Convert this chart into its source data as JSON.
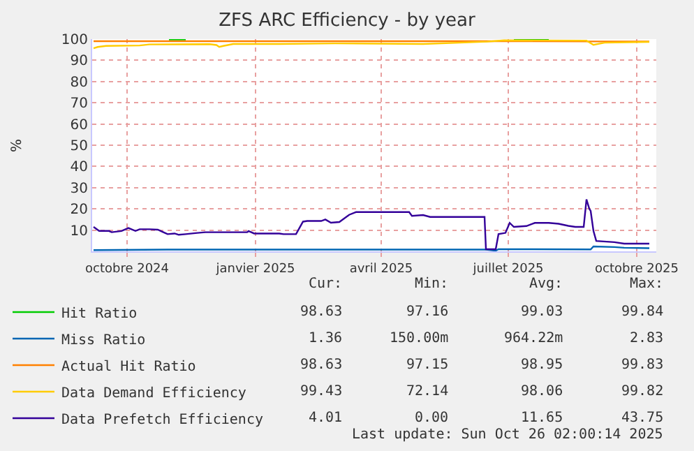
{
  "chart_data": {
    "type": "line",
    "title": "ZFS ARC Efficiency - by year",
    "ylabel": "%",
    "xlim": [
      "2024-09-06",
      "2025-10-15"
    ],
    "xticks": [
      {
        "value": "2024-10-01",
        "label": "octobre 2024"
      },
      {
        "value": "2025-01-01",
        "label": "janvier 2025"
      },
      {
        "value": "2025-04-01",
        "label": "avril 2025"
      },
      {
        "value": "2025-07-01",
        "label": "juillet 2025"
      },
      {
        "value": "2025-10-01",
        "label": "octobre 2025"
      }
    ],
    "ylim": [
      0,
      100
    ],
    "yticks": [
      10,
      20,
      30,
      40,
      50,
      60,
      70,
      80,
      90,
      100
    ],
    "grid": true,
    "legend": "bottom left",
    "series": [
      {
        "name": "Hit Ratio",
        "color": "#00cc00",
        "x": [
          "2024-10-31",
          "2024-11-12",
          "2024-11-13",
          "2025-07-05",
          "2025-07-30"
        ],
        "values": [
          99.8,
          99.8,
          null,
          99.9,
          99.9
        ]
      },
      {
        "name": "Miss Ratio",
        "color": "#0066b3",
        "x": [
          "2024-09-07",
          "2024-10-30",
          "2025-06-15",
          "2025-06-22",
          "2025-06-24",
          "2025-08-29",
          "2025-08-31",
          "2025-09-15",
          "2025-09-22",
          "2025-10-10"
        ],
        "values": [
          0.6,
          0.8,
          0.8,
          0.3,
          1.0,
          0.9,
          2.3,
          2.0,
          1.7,
          1.5
        ]
      },
      {
        "name": "Actual Hit Ratio",
        "color": "#ff8000",
        "x": [
          "2024-09-07",
          "2024-12-31",
          "2025-06-15",
          "2025-08-31",
          "2025-10-10"
        ],
        "values": [
          99.0,
          99.0,
          99.0,
          98.9,
          98.9
        ]
      },
      {
        "name": "Data Demand Efficiency",
        "color": "#ffcc00",
        "x": [
          "2024-09-07",
          "2024-09-10",
          "2024-09-16",
          "2024-10-10",
          "2024-10-17",
          "2024-11-29",
          "2024-12-04",
          "2024-12-06",
          "2024-12-09",
          "2024-12-16",
          "2025-01-18",
          "2025-02-27",
          "2025-05-01",
          "2025-06-16",
          "2025-06-28",
          "2025-08-26",
          "2025-08-31",
          "2025-09-08",
          "2025-10-10"
        ],
        "values": [
          95.7,
          96.3,
          96.8,
          97.0,
          97.5,
          97.6,
          97.2,
          96.3,
          96.8,
          97.7,
          97.7,
          98.0,
          97.7,
          98.8,
          99.4,
          99.3,
          97.3,
          98.3,
          98.7
        ]
      },
      {
        "name": "Data Prefetch Efficiency",
        "color": "#330099",
        "x": [
          "2024-09-07",
          "2024-09-11",
          "2024-09-18",
          "2024-09-20",
          "2024-09-27",
          "2024-10-02",
          "2024-10-07",
          "2024-10-10",
          "2024-10-17",
          "2024-10-23",
          "2024-10-27",
          "2024-10-30",
          "2024-11-04",
          "2024-11-07",
          "2024-11-12",
          "2024-11-19",
          "2024-11-26",
          "2024-12-16",
          "2024-12-26",
          "2024-12-27",
          "2024-12-31",
          "2025-01-18",
          "2025-01-21",
          "2025-01-30",
          "2025-02-04",
          "2025-02-07",
          "2025-02-17",
          "2025-02-20",
          "2025-02-24",
          "2025-03-02",
          "2025-03-09",
          "2025-03-14",
          "2025-04-21",
          "2025-04-23",
          "2025-05-01",
          "2025-05-06",
          "2025-06-14",
          "2025-06-15",
          "2025-06-22",
          "2025-06-24",
          "2025-06-29",
          "2025-07-02",
          "2025-07-05",
          "2025-07-14",
          "2025-07-20",
          "2025-07-30",
          "2025-08-06",
          "2025-08-13",
          "2025-08-18",
          "2025-08-24",
          "2025-08-26",
          "2025-08-28",
          "2025-08-29",
          "2025-08-31",
          "2025-09-02",
          "2025-09-15",
          "2025-09-22",
          "2025-10-10"
        ],
        "values": [
          11.5,
          9.6,
          9.6,
          9.0,
          9.6,
          11.0,
          9.6,
          10.4,
          10.4,
          10.2,
          9.0,
          8.1,
          8.4,
          7.8,
          8.1,
          8.6,
          9.0,
          9.0,
          9.0,
          9.6,
          8.4,
          8.4,
          8.1,
          8.1,
          14.0,
          14.3,
          14.3,
          15.0,
          13.5,
          13.8,
          17.2,
          18.5,
          18.5,
          16.7,
          17.1,
          16.2,
          16.2,
          1.0,
          1.0,
          8.1,
          8.7,
          13.4,
          11.5,
          11.9,
          13.4,
          13.4,
          13.0,
          12.0,
          11.5,
          11.5,
          24.5,
          20.1,
          19.0,
          9.6,
          4.9,
          4.3,
          3.6,
          3.6
        ]
      }
    ],
    "annotations": [
      "Cur:",
      "Min:",
      "Avg:",
      "Max:",
      "98.63",
      "97.16",
      "99.03",
      "99.84",
      "1.36",
      "150.00m",
      "964.22m",
      "2.83",
      "98.63",
      "97.15",
      "98.95",
      "99.83",
      "99.43",
      "72.14",
      "98.06",
      "99.82",
      "4.01",
      "0.00",
      "11.65",
      "43.75",
      "Last update: Sun Oct 26 02:00:14 2025"
    ]
  }
}
